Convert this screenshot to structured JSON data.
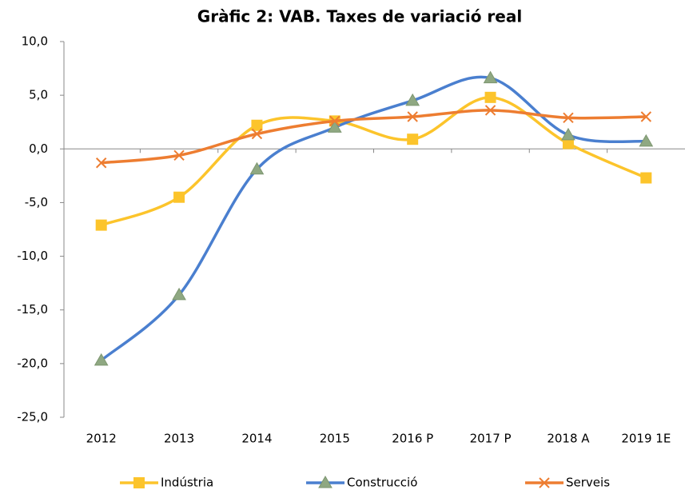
{
  "chart_data": {
    "type": "line",
    "title": "Gràfic 2: VAB. Taxes de variació real",
    "categories": [
      "2012",
      "2013",
      "2014",
      "2015",
      "2016 P",
      "2017 P",
      "2018 A",
      "2019 1E"
    ],
    "series": [
      {
        "name": "Indústria",
        "color": "#fcc42b",
        "marker": "square",
        "values": [
          -7.1,
          -4.5,
          2.2,
          2.6,
          0.9,
          4.8,
          0.5,
          -2.7
        ]
      },
      {
        "name": "Construcció",
        "color": "#4a7fcf",
        "marker": "triangle",
        "values": [
          -19.7,
          -13.6,
          -1.9,
          2.0,
          4.5,
          6.6,
          1.3,
          0.7
        ]
      },
      {
        "name": "Serveis",
        "color": "#ed7d31",
        "marker": "x",
        "values": [
          -1.3,
          -0.6,
          1.4,
          2.6,
          3.0,
          3.6,
          2.9,
          3.0
        ]
      }
    ],
    "ylim": [
      -25,
      10
    ],
    "yticks": [
      {
        "value": -25,
        "label": "-25,0"
      },
      {
        "value": -20,
        "label": "-20,0"
      },
      {
        "value": -15,
        "label": "-15,0"
      },
      {
        "value": -10,
        "label": "-10,0"
      },
      {
        "value": -5,
        "label": "-5,0"
      },
      {
        "value": 0,
        "label": "0,0"
      },
      {
        "value": 5,
        "label": "5,0"
      },
      {
        "value": 10,
        "label": "10,0"
      }
    ],
    "legend": "bottom",
    "smooth": true
  }
}
